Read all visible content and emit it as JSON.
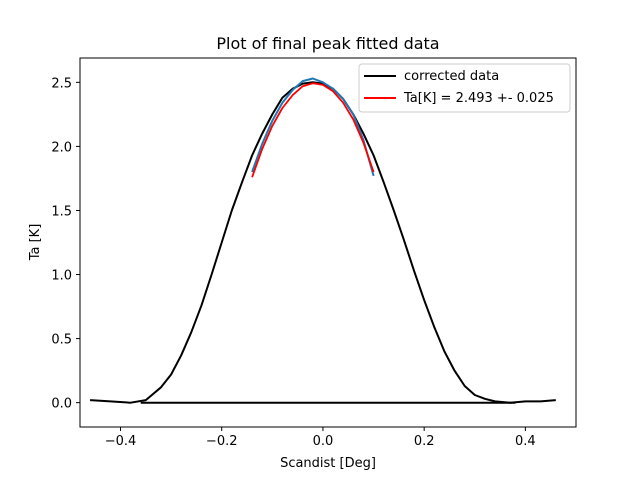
{
  "chart_data": {
    "type": "line",
    "title": "Plot of final peak fitted data",
    "xlabel": "Scandist [Deg]",
    "ylabel": "Ta [K]",
    "xlim": [
      -0.48,
      0.5
    ],
    "ylim": [
      -0.19,
      2.69
    ],
    "x_ticks": [
      "−0.4",
      "−0.2",
      "0.0",
      "0.2",
      "0.4"
    ],
    "x_tick_values": [
      -0.4,
      -0.2,
      0.0,
      0.2,
      0.4
    ],
    "y_ticks": [
      "0.0",
      "0.5",
      "1.0",
      "1.5",
      "2.0",
      "2.5"
    ],
    "y_tick_values": [
      0.0,
      0.5,
      1.0,
      1.5,
      2.0,
      2.5
    ],
    "grid": false,
    "legend_position": "top-right",
    "series": [
      {
        "name": "corrected data",
        "color": "#000000",
        "x": [
          -0.46,
          -0.42,
          -0.38,
          -0.35,
          -0.32,
          -0.3,
          -0.28,
          -0.26,
          -0.24,
          -0.22,
          -0.2,
          -0.18,
          -0.16,
          -0.14,
          -0.12,
          -0.1,
          -0.08,
          -0.06,
          -0.04,
          -0.02,
          0.0,
          0.02,
          0.04,
          0.06,
          0.08,
          0.1,
          0.12,
          0.14,
          0.16,
          0.18,
          0.2,
          0.22,
          0.24,
          0.26,
          0.28,
          0.3,
          0.32,
          0.34,
          0.37,
          0.4,
          0.43,
          0.46
        ],
        "y": [
          0.02,
          0.01,
          0.0,
          0.02,
          0.12,
          0.22,
          0.37,
          0.55,
          0.76,
          1.0,
          1.25,
          1.5,
          1.72,
          1.93,
          2.1,
          2.25,
          2.38,
          2.45,
          2.49,
          2.5,
          2.49,
          2.45,
          2.37,
          2.25,
          2.1,
          1.93,
          1.72,
          1.5,
          1.27,
          1.03,
          0.8,
          0.59,
          0.4,
          0.25,
          0.13,
          0.06,
          0.03,
          0.01,
          0.0,
          0.01,
          0.01,
          0.02
        ]
      },
      {
        "name": "",
        "color": "#000000",
        "x": [
          -0.36,
          0.38
        ],
        "y": [
          0.0,
          0.0
        ]
      },
      {
        "name": "",
        "color": "#1f77b4",
        "x": [
          -0.14,
          -0.12,
          -0.1,
          -0.08,
          -0.06,
          -0.04,
          -0.02,
          0.0,
          0.02,
          0.04,
          0.06,
          0.08,
          0.1
        ],
        "y": [
          1.8,
          2.02,
          2.2,
          2.34,
          2.44,
          2.51,
          2.53,
          2.5,
          2.45,
          2.37,
          2.25,
          2.05,
          1.77
        ]
      },
      {
        "name": "Ta[K] = 2.493 +- 0.025",
        "color": "#ff0000",
        "x": [
          -0.14,
          -0.12,
          -0.1,
          -0.08,
          -0.06,
          -0.04,
          -0.02,
          0.0,
          0.02,
          0.04,
          0.06,
          0.08,
          0.1
        ],
        "y": [
          1.76,
          1.98,
          2.16,
          2.3,
          2.4,
          2.47,
          2.493,
          2.48,
          2.43,
          2.34,
          2.21,
          2.03,
          1.8
        ]
      }
    ]
  }
}
